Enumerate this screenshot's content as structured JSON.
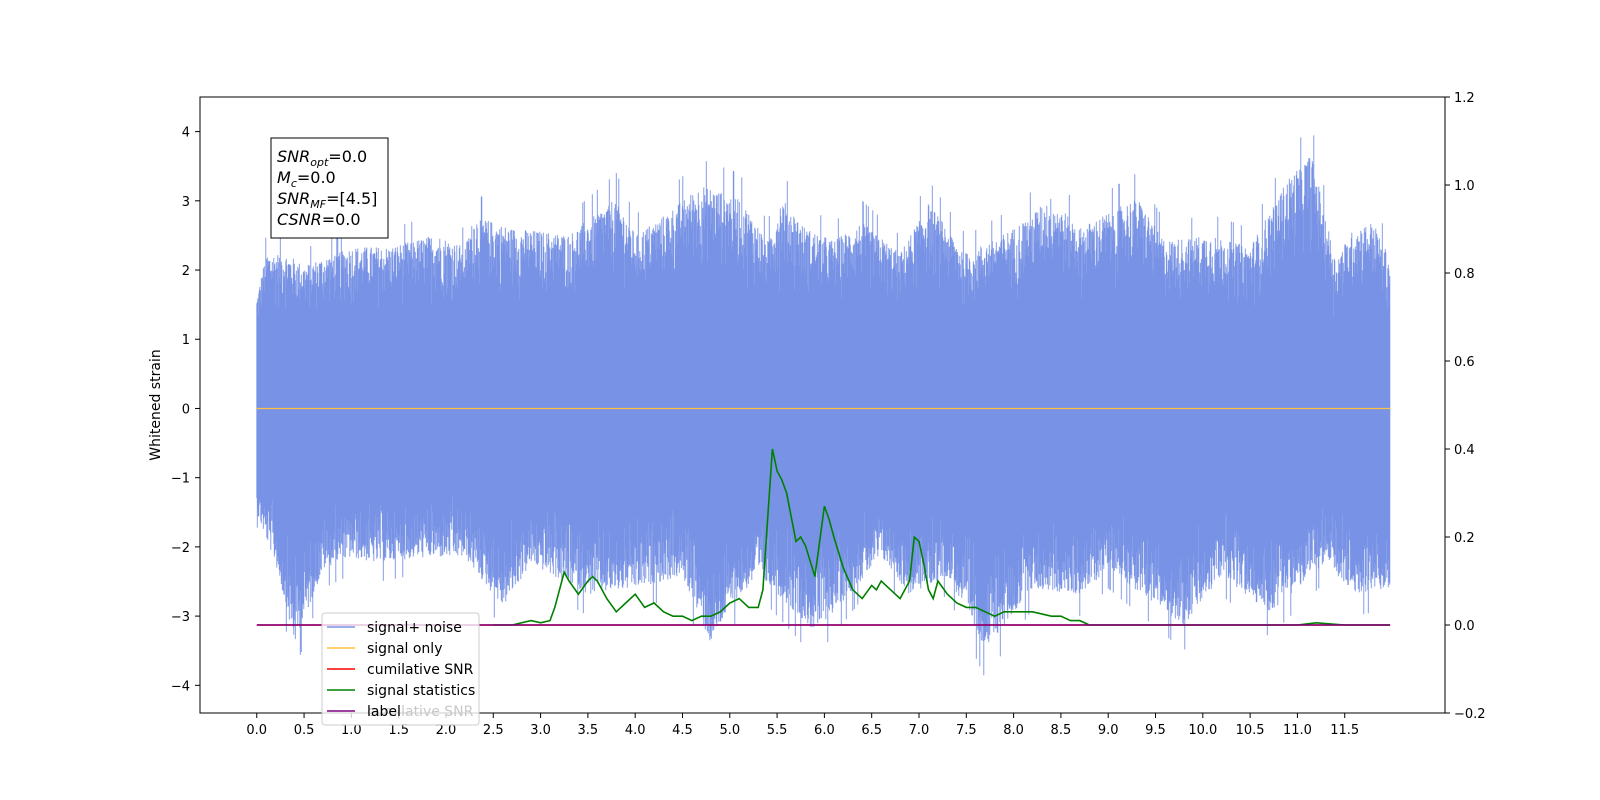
{
  "chart_data": {
    "type": "line",
    "title": "",
    "xlabel": "",
    "ylabel": "Whitened strain",
    "xlim": [
      -0.6,
      12.56
    ],
    "ylim": [
      -4.4,
      4.5
    ],
    "y2lim": [
      -0.2,
      1.2
    ],
    "x_ticks": [
      "0.0",
      "0.5",
      "1.0",
      "1.5",
      "2.0",
      "2.5",
      "3.0",
      "3.5",
      "4.0",
      "4.5",
      "5.0",
      "5.5",
      "6.0",
      "6.5",
      "7.0",
      "7.5",
      "8.0",
      "8.5",
      "9.0",
      "9.5",
      "10.0",
      "10.5",
      "11.0",
      "11.5"
    ],
    "y_ticks": [
      "−4",
      "−3",
      "−2",
      "−1",
      "0",
      "1",
      "2",
      "3",
      "4"
    ],
    "y2_ticks": [
      "−0.2",
      "0.0",
      "0.2",
      "0.4",
      "0.6",
      "0.8",
      "1.0",
      "1.2"
    ],
    "grid": false,
    "legend_position": "bottom-left",
    "info_box": {
      "lines": [
        {
          "name": "SNR",
          "sub": "opt",
          "value": "=0.0"
        },
        {
          "name": "M",
          "sub": "c",
          "value": "=0.0"
        },
        {
          "name": "SNR",
          "sub": "MF",
          "value": "=[4.5]"
        },
        {
          "name": "CSNR",
          "sub": "",
          "value": "=0.0"
        }
      ]
    },
    "series": [
      {
        "name": "signal+ noise",
        "color": "#7893e6",
        "axis": "left",
        "description_range": [
          0.0,
          11.98
        ],
        "envelope_upper": [
          [
            0.0,
            1.8
          ],
          [
            0.1,
            2.5
          ],
          [
            0.3,
            2.5
          ],
          [
            0.5,
            2.3
          ],
          [
            0.8,
            2.5
          ],
          [
            1.0,
            2.6
          ],
          [
            1.4,
            2.6
          ],
          [
            1.9,
            2.8
          ],
          [
            2.2,
            2.6
          ],
          [
            2.3,
            3.1
          ],
          [
            2.7,
            2.9
          ],
          [
            3.3,
            2.8
          ],
          [
            3.8,
            3.4
          ],
          [
            4.0,
            2.8
          ],
          [
            4.3,
            3.1
          ],
          [
            4.7,
            3.6
          ],
          [
            5.1,
            3.4
          ],
          [
            5.4,
            2.7
          ],
          [
            5.55,
            3.4
          ],
          [
            5.8,
            2.9
          ],
          [
            6.1,
            2.7
          ],
          [
            6.4,
            3.0
          ],
          [
            6.8,
            2.5
          ],
          [
            7.1,
            3.3
          ],
          [
            7.5,
            2.5
          ],
          [
            8.0,
            2.9
          ],
          [
            8.4,
            3.4
          ],
          [
            8.7,
            2.9
          ],
          [
            9.3,
            3.4
          ],
          [
            9.6,
            2.7
          ],
          [
            10.1,
            2.8
          ],
          [
            10.5,
            2.6
          ],
          [
            10.9,
            3.7
          ],
          [
            11.15,
            4.1
          ],
          [
            11.4,
            2.4
          ],
          [
            11.6,
            2.9
          ],
          [
            11.8,
            3.0
          ],
          [
            11.98,
            2.4
          ]
        ],
        "envelope_lower": [
          [
            0.0,
            -1.7
          ],
          [
            0.2,
            -2.5
          ],
          [
            0.4,
            -3.8
          ],
          [
            0.7,
            -2.6
          ],
          [
            1.0,
            -2.4
          ],
          [
            1.3,
            -2.5
          ],
          [
            1.7,
            -2.4
          ],
          [
            2.2,
            -2.4
          ],
          [
            2.6,
            -3.2
          ],
          [
            2.9,
            -2.5
          ],
          [
            3.5,
            -3.0
          ],
          [
            4.0,
            -2.9
          ],
          [
            4.5,
            -2.7
          ],
          [
            4.8,
            -3.8
          ],
          [
            5.0,
            -3.2
          ],
          [
            5.3,
            -2.7
          ],
          [
            5.9,
            -3.6
          ],
          [
            6.2,
            -3.1
          ],
          [
            6.6,
            -2.4
          ],
          [
            6.9,
            -3.0
          ],
          [
            7.3,
            -2.7
          ],
          [
            7.7,
            -3.9
          ],
          [
            8.2,
            -2.9
          ],
          [
            8.7,
            -3.0
          ],
          [
            9.0,
            -2.6
          ],
          [
            9.8,
            -3.5
          ],
          [
            10.2,
            -2.7
          ],
          [
            10.7,
            -3.3
          ],
          [
            11.3,
            -2.5
          ],
          [
            11.6,
            -3.0
          ],
          [
            11.98,
            -2.9
          ]
        ]
      },
      {
        "name": "signal only",
        "color": "#ffbf40",
        "axis": "left",
        "x": [
          0.0,
          11.98
        ],
        "values": [
          0.0,
          0.0
        ]
      },
      {
        "name": "cumilative SNR",
        "color": "#ff0000",
        "axis": "right",
        "x": [
          0.0,
          11.98
        ],
        "values": [
          0.0,
          0.0
        ]
      },
      {
        "name": "signal statistics",
        "color": "#008000",
        "axis": "right",
        "x": [
          2.5,
          2.7,
          2.9,
          3.0,
          3.1,
          3.15,
          3.25,
          3.3,
          3.4,
          3.5,
          3.55,
          3.6,
          3.7,
          3.8,
          3.9,
          4.0,
          4.1,
          4.2,
          4.3,
          4.4,
          4.5,
          4.6,
          4.7,
          4.8,
          4.9,
          5.0,
          5.1,
          5.2,
          5.3,
          5.35,
          5.4,
          5.45,
          5.5,
          5.55,
          5.6,
          5.7,
          5.75,
          5.8,
          5.9,
          6.0,
          6.05,
          6.1,
          6.2,
          6.3,
          6.4,
          6.5,
          6.55,
          6.6,
          6.7,
          6.8,
          6.9,
          6.95,
          7.0,
          7.05,
          7.1,
          7.15,
          7.2,
          7.3,
          7.35,
          7.4,
          7.5,
          7.6,
          7.7,
          7.8,
          7.9,
          8.0,
          8.2,
          8.4,
          8.5,
          8.6,
          8.7,
          8.8,
          9.0,
          9.2,
          9.4,
          9.5,
          9.6,
          9.8,
          10.0,
          10.5,
          11.0,
          11.2,
          11.5,
          11.8,
          11.98
        ],
        "values": [
          0.0,
          0.0,
          0.01,
          0.005,
          0.01,
          0.04,
          0.12,
          0.1,
          0.07,
          0.1,
          0.11,
          0.1,
          0.06,
          0.03,
          0.05,
          0.07,
          0.04,
          0.05,
          0.03,
          0.02,
          0.02,
          0.01,
          0.02,
          0.02,
          0.03,
          0.05,
          0.06,
          0.04,
          0.04,
          0.08,
          0.24,
          0.4,
          0.35,
          0.33,
          0.3,
          0.19,
          0.2,
          0.18,
          0.11,
          0.27,
          0.24,
          0.2,
          0.13,
          0.08,
          0.06,
          0.09,
          0.08,
          0.1,
          0.08,
          0.06,
          0.1,
          0.2,
          0.19,
          0.14,
          0.08,
          0.06,
          0.1,
          0.07,
          0.06,
          0.05,
          0.04,
          0.04,
          0.03,
          0.02,
          0.03,
          0.03,
          0.03,
          0.02,
          0.02,
          0.01,
          0.01,
          0.0,
          0.0,
          0.0,
          0.0,
          0.0,
          0.0,
          0.0,
          0.0,
          0.0,
          0.0,
          0.005,
          0.0,
          0.0,
          0.0
        ]
      },
      {
        "name": "label",
        "color": "#800080",
        "axis": "right",
        "x": [
          0.0,
          11.98
        ],
        "values": [
          0.0,
          0.0
        ]
      }
    ],
    "legend": [
      {
        "name": "signal+ noise",
        "color": "#7893e6"
      },
      {
        "name": "signal only",
        "color": "#ffbf40"
      },
      {
        "name": "cumilative SNR",
        "color": "#ff0000"
      },
      {
        "name": "signal statistics",
        "color": "#008000"
      },
      {
        "name": "label",
        "color": "#800080"
      }
    ],
    "legend_ghost_text": "cumilative SNR"
  }
}
